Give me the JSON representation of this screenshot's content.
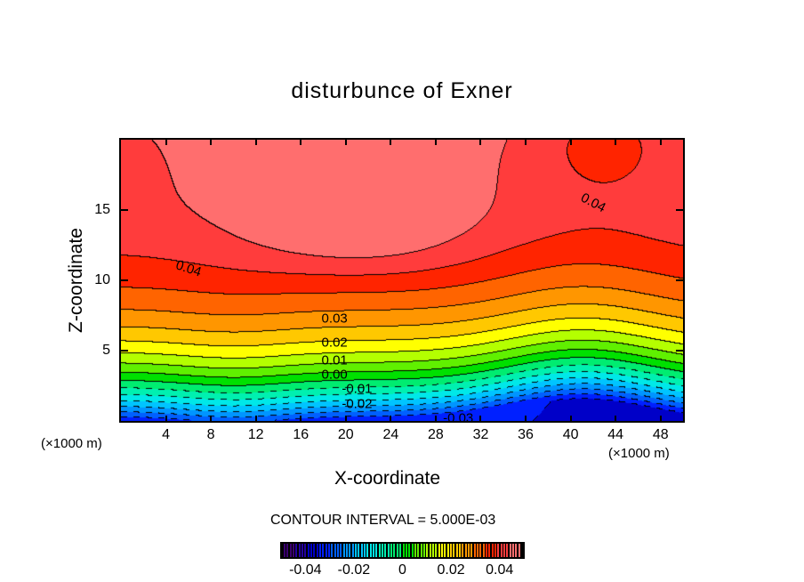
{
  "chart_data": {
    "type": "heatmap",
    "subtype": "filled-contour",
    "title": "disturbunce of Exner",
    "xlabel": "X-coordinate",
    "ylabel": "Z-coordinate",
    "x_unit": "(×1000 m)",
    "z_unit": "(×1000 m)",
    "xlim": [
      0,
      50
    ],
    "ylim": [
      0,
      20
    ],
    "xticks": [
      "4",
      "8",
      "12",
      "16",
      "20",
      "24",
      "28",
      "32",
      "36",
      "40",
      "44",
      "48"
    ],
    "xtick_values": [
      4,
      8,
      12,
      16,
      20,
      24,
      28,
      32,
      36,
      40,
      44,
      48
    ],
    "yticks": [
      "5",
      "10",
      "15"
    ],
    "ytick_values": [
      5,
      10,
      15
    ],
    "contour_interval_label": "CONTOUR INTERVAL = 5.000E-03",
    "contour_interval": 0.005,
    "level_range": [
      -0.05,
      0.05
    ],
    "contour_labels": [
      {
        "text": "0.04",
        "x": 6,
        "z": 10.8
      },
      {
        "text": "0.04",
        "x": 42,
        "z": 15.5
      },
      {
        "text": "0.03",
        "x": 19,
        "z": 7.3
      },
      {
        "text": "0.02",
        "x": 19,
        "z": 5.6
      },
      {
        "text": "0.01",
        "x": 19,
        "z": 4.3
      },
      {
        "text": "0.00",
        "x": 19,
        "z": 3.3
      },
      {
        "text": "-0.01",
        "x": 21,
        "z": 2.3
      },
      {
        "text": "-0.02",
        "x": 21,
        "z": 1.2
      },
      {
        "text": "-0.03",
        "x": 30,
        "z": 0.2
      }
    ],
    "approx_values": {
      "bottom_z0": -0.035,
      "zero_line_z": 3.3,
      "max_center": {
        "x": 21,
        "z": 13.5,
        "value": 0.05
      },
      "top_at_x42": 0.035
    },
    "colorbar": {
      "ticks": [
        "-0.04",
        "-0.02",
        "0",
        "0.02",
        "0.04"
      ],
      "tick_values": [
        -0.04,
        -0.02,
        0,
        0.02,
        0.04
      ]
    },
    "colors": [
      "#3a0070",
      "#2400a0",
      "#0000c8",
      "#0020ff",
      "#0060ff",
      "#0095ff",
      "#00c4ff",
      "#00e8e8",
      "#00f0b0",
      "#00ec70",
      "#00e000",
      "#60f000",
      "#b4ff00",
      "#ffff00",
      "#ffc800",
      "#ff9600",
      "#ff6400",
      "#ff2400",
      "#ff3c3c",
      "#ff6e6e"
    ]
  }
}
